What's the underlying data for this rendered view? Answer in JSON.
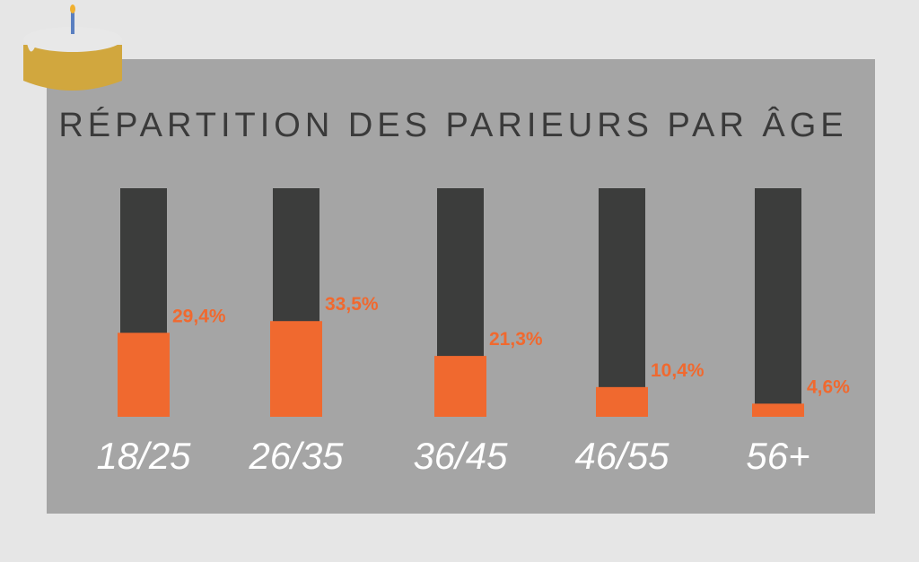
{
  "chart_data": {
    "type": "bar",
    "title": "RÉPARTITION DES PARIEURS PAR ÂGE",
    "categories": [
      "18/25",
      "26/35",
      "36/45",
      "46/55",
      "56+"
    ],
    "values": [
      29.4,
      33.5,
      21.3,
      10.4,
      4.6
    ],
    "value_labels": [
      "29,4%",
      "33,5%",
      "21,3%",
      "10,4%",
      "4,6%"
    ],
    "color": "#f0692f",
    "track_color": "#3c3d3c",
    "ylim": [
      0,
      80
    ]
  }
}
